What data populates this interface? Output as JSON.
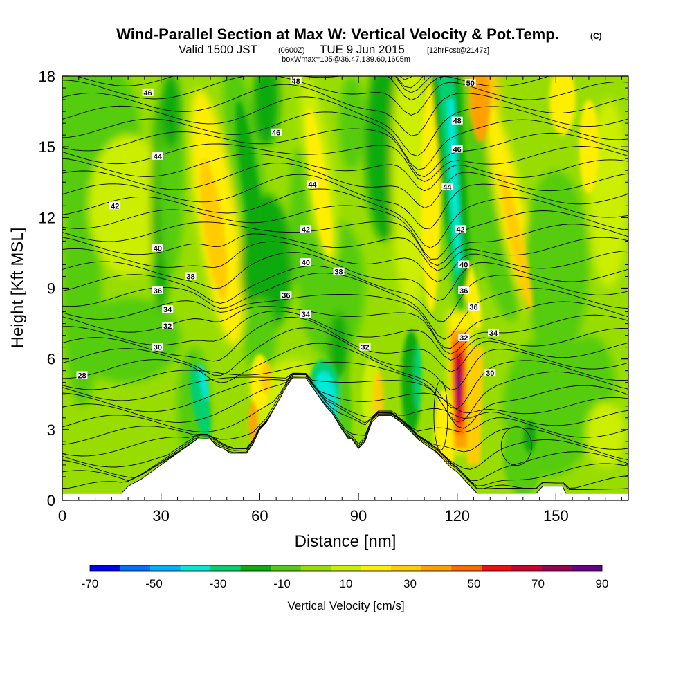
{
  "header": {
    "title_main": "Wind-Parallel Section at Max W: Vertical Velocity & Pot.Temp.",
    "title_mark": "(C)",
    "valid_a": "Valid 1500 JST",
    "valid_b": "(0600Z)",
    "valid_c": "TUE 9 Jun 2015",
    "valid_d": "[12hrFcst@2147z]",
    "box_line": "boxWmax=105@36.47,139.60,1605m"
  },
  "chart_data": {
    "type": "heatmap",
    "xlabel": "Distance [nm]",
    "ylabel": "Height [Kft MSL]",
    "xlim": [
      0,
      172
    ],
    "ylim": [
      0,
      18
    ],
    "x_ticks": [
      0,
      30,
      60,
      90,
      120,
      150
    ],
    "y_ticks": [
      0,
      3,
      6,
      9,
      12,
      15,
      18
    ],
    "colorbar": {
      "label": "Vertical Velocity [cm/s]",
      "tick_labels": [
        "-70",
        "-50",
        "-30",
        "-10",
        "10",
        "30",
        "50",
        "70",
        "90"
      ],
      "levels": [
        -70,
        -60,
        -50,
        -40,
        -30,
        -20,
        -10,
        0,
        10,
        20,
        30,
        40,
        50,
        60,
        70,
        80,
        90
      ],
      "colors": [
        "#0000ee",
        "#0070ff",
        "#00b0ff",
        "#00e8d8",
        "#00d070",
        "#11aa11",
        "#55cc11",
        "#99dd00",
        "#ccee00",
        "#ffee00",
        "#ffcc00",
        "#ffa000",
        "#ff6a00",
        "#ee1010",
        "#cc0030",
        "#990050",
        "#660088"
      ]
    },
    "terrain_kft": [
      [
        0,
        0.3
      ],
      [
        18,
        0.3
      ],
      [
        20,
        0.6
      ],
      [
        24,
        0.9
      ],
      [
        27,
        1.2
      ],
      [
        30,
        1.5
      ],
      [
        33,
        1.8
      ],
      [
        36,
        2.1
      ],
      [
        39,
        2.4
      ],
      [
        41,
        2.6
      ],
      [
        45,
        2.6
      ],
      [
        47,
        2.3
      ],
      [
        49,
        2.2
      ],
      [
        51,
        2.0
      ],
      [
        54,
        2.0
      ],
      [
        56,
        2.0
      ],
      [
        58,
        2.4
      ],
      [
        60,
        3.0
      ],
      [
        62,
        3.3
      ],
      [
        64,
        3.8
      ],
      [
        66,
        4.3
      ],
      [
        68,
        4.8
      ],
      [
        70,
        5.2
      ],
      [
        74,
        5.2
      ],
      [
        76,
        4.8
      ],
      [
        78,
        4.4
      ],
      [
        80,
        4.0
      ],
      [
        82,
        3.7
      ],
      [
        85,
        3.0
      ],
      [
        87,
        2.6
      ],
      [
        88,
        2.6
      ],
      [
        90,
        2.2
      ],
      [
        92,
        2.5
      ],
      [
        94,
        3.3
      ],
      [
        96,
        3.6
      ],
      [
        100,
        3.6
      ],
      [
        103,
        3.3
      ],
      [
        106,
        2.9
      ],
      [
        108,
        2.6
      ],
      [
        111,
        2.3
      ],
      [
        114,
        2.0
      ],
      [
        116,
        1.7
      ],
      [
        118,
        1.4
      ],
      [
        120,
        1.2
      ],
      [
        122,
        0.9
      ],
      [
        124,
        0.6
      ],
      [
        126,
        0.3
      ],
      [
        144,
        0.3
      ],
      [
        146,
        0.6
      ],
      [
        152,
        0.6
      ],
      [
        153,
        0.3
      ],
      [
        172,
        0.3
      ]
    ],
    "theta_contours": [
      {
        "theta": "28",
        "label_x": 6,
        "label_y": 5.3
      },
      {
        "theta": "30",
        "label_x": 29,
        "label_y": 6.5
      },
      {
        "theta": "30",
        "label_x": 130,
        "label_y": 5.4
      },
      {
        "theta": "32",
        "label_x": 32,
        "label_y": 7.4
      },
      {
        "theta": "32",
        "label_x": 92,
        "label_y": 6.5
      },
      {
        "theta": "32",
        "label_x": 122,
        "label_y": 6.9
      },
      {
        "theta": "34",
        "label_x": 32,
        "label_y": 8.1
      },
      {
        "theta": "34",
        "label_x": 74,
        "label_y": 7.9
      },
      {
        "theta": "34",
        "label_x": 131,
        "label_y": 7.1
      },
      {
        "theta": "36",
        "label_x": 29,
        "label_y": 8.9
      },
      {
        "theta": "36",
        "label_x": 68,
        "label_y": 8.7
      },
      {
        "theta": "36",
        "label_x": 122,
        "label_y": 8.9
      },
      {
        "theta": "36",
        "label_x": 125,
        "label_y": 8.2
      },
      {
        "theta": "38",
        "label_x": 39,
        "label_y": 9.5
      },
      {
        "theta": "38",
        "label_x": 84,
        "label_y": 9.7
      },
      {
        "theta": "40",
        "label_x": 29,
        "label_y": 10.7
      },
      {
        "theta": "40",
        "label_x": 74,
        "label_y": 10.1
      },
      {
        "theta": "40",
        "label_x": 122,
        "label_y": 10.0
      },
      {
        "theta": "42",
        "label_x": 16,
        "label_y": 12.5
      },
      {
        "theta": "42",
        "label_x": 74,
        "label_y": 11.5
      },
      {
        "theta": "42",
        "label_x": 121,
        "label_y": 11.5
      },
      {
        "theta": "44",
        "label_x": 29,
        "label_y": 14.6
      },
      {
        "theta": "44",
        "label_x": 76,
        "label_y": 13.4
      },
      {
        "theta": "44",
        "label_x": 117,
        "label_y": 13.3
      },
      {
        "theta": "46",
        "label_x": 26,
        "label_y": 17.3
      },
      {
        "theta": "46",
        "label_x": 65,
        "label_y": 15.6
      },
      {
        "theta": "46",
        "label_x": 120,
        "label_y": 14.9
      },
      {
        "theta": "48",
        "label_x": 71,
        "label_y": 17.8
      },
      {
        "theta": "48",
        "label_x": 120,
        "label_y": 16.1
      },
      {
        "theta": "50",
        "label_x": 124,
        "label_y": 17.7
      }
    ]
  }
}
